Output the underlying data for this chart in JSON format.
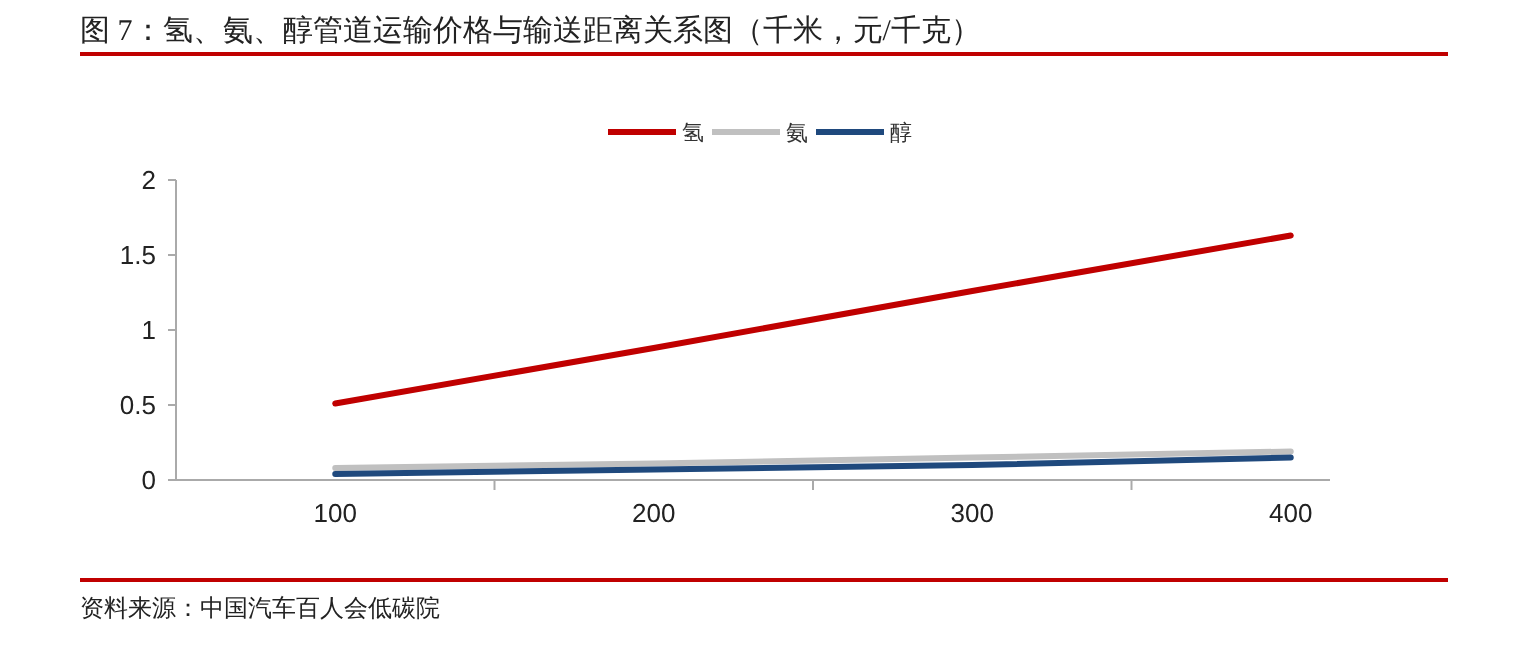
{
  "chart_data": {
    "type": "line",
    "title": "图 7：氢、氨、醇管道运输价格与输送距离关系图（千米，元/千克）",
    "categories": [
      "100",
      "200",
      "300",
      "400"
    ],
    "series": [
      {
        "name": "氢",
        "color": "#c00000",
        "values": [
          0.51,
          0.88,
          1.26,
          1.63
        ]
      },
      {
        "name": "氨",
        "color": "#c0c0c0",
        "values": [
          0.08,
          0.11,
          0.15,
          0.19
        ]
      },
      {
        "name": "醇",
        "color": "#1f497d",
        "values": [
          0.04,
          0.07,
          0.1,
          0.15
        ]
      }
    ],
    "ylim": [
      0,
      2
    ],
    "yticks": [
      0,
      0.5,
      1,
      1.5,
      2
    ],
    "legend": "top",
    "grid": false,
    "marker": "none",
    "line_style": "solid",
    "annotations": [
      "资料来源：中国汽车百人会低碳院"
    ]
  }
}
